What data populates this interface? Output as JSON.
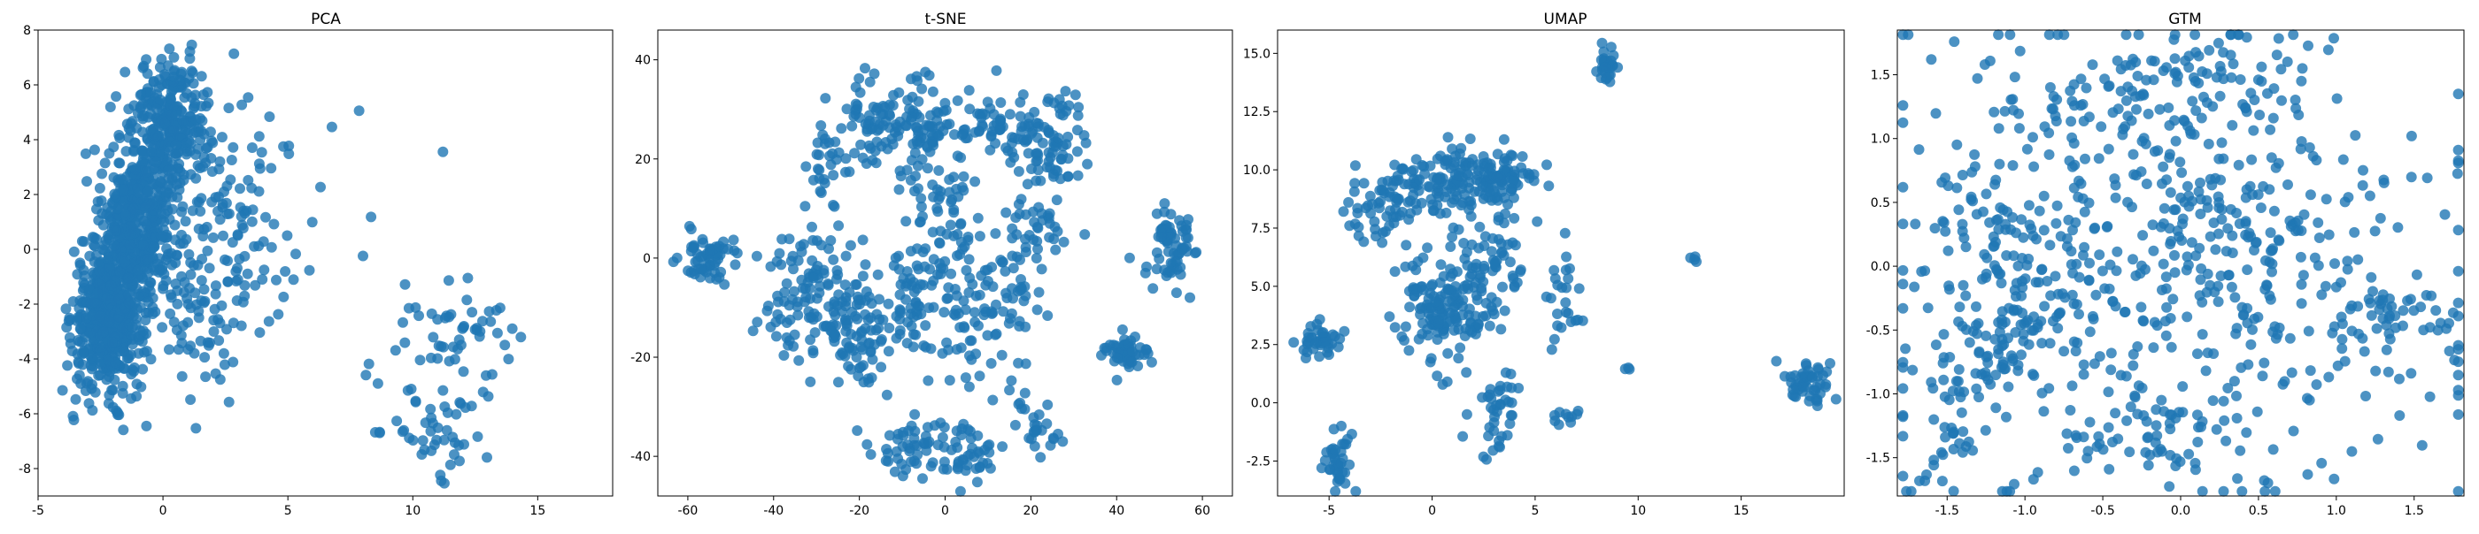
{
  "figure": {
    "panel_count": 4
  },
  "chart_data": [
    {
      "type": "scatter",
      "title": "PCA",
      "xlabel": "",
      "ylabel": "",
      "xlim": [
        -5,
        18
      ],
      "ylim": [
        -9,
        8
      ],
      "xticks": [
        -5,
        0,
        5,
        10,
        15
      ],
      "yticks": [
        -8,
        -6,
        -4,
        -2,
        0,
        2,
        4,
        6,
        8
      ],
      "marker_color": "#1f77b4",
      "marker_alpha": 0.8,
      "clusters": [
        {
          "cx": -2.2,
          "cy": -2.5,
          "sx": 0.7,
          "sy": 1.3,
          "n": 520
        },
        {
          "cx": -1.0,
          "cy": 1.0,
          "sx": 0.7,
          "sy": 1.6,
          "n": 420
        },
        {
          "cx": 0.3,
          "cy": 4.6,
          "sx": 0.8,
          "sy": 1.1,
          "n": 280
        },
        {
          "cx": 2.2,
          "cy": 1.5,
          "sx": 1.6,
          "sy": 2.2,
          "n": 130
        },
        {
          "cx": 1.5,
          "cy": -2.5,
          "sx": 1.5,
          "sy": 1.5,
          "n": 70
        },
        {
          "cx": 12.0,
          "cy": -3.0,
          "sx": 1.2,
          "sy": 1.0,
          "n": 50
        },
        {
          "cx": 11.0,
          "cy": -6.5,
          "sx": 1.5,
          "sy": 1.0,
          "n": 50
        },
        {
          "cx": 6.5,
          "cy": 0.0,
          "sx": 1.5,
          "sy": 2.5,
          "n": 15
        }
      ]
    },
    {
      "type": "scatter",
      "title": "t-SNE",
      "xlabel": "",
      "ylabel": "",
      "xlim": [
        -67,
        67
      ],
      "ylim": [
        -48,
        46
      ],
      "xticks": [
        -60,
        -40,
        -20,
        0,
        20,
        40,
        60
      ],
      "yticks": [
        -40,
        -20,
        0,
        20,
        40
      ],
      "marker_color": "#1f77b4",
      "marker_alpha": 0.8,
      "clusters": [
        {
          "cx": -55,
          "cy": 0,
          "sx": 3.5,
          "sy": 3.0,
          "n": 60
        },
        {
          "cx": -30,
          "cy": -8,
          "sx": 6,
          "sy": 7,
          "n": 120
        },
        {
          "cx": -15,
          "cy": 27,
          "sx": 5,
          "sy": 5,
          "n": 80
        },
        {
          "cx": -4,
          "cy": 27,
          "sx": 4,
          "sy": 5,
          "n": 60
        },
        {
          "cx": 12,
          "cy": 25,
          "sx": 5,
          "sy": 4,
          "n": 60
        },
        {
          "cx": 25,
          "cy": 23,
          "sx": 4,
          "sy": 5,
          "n": 70
        },
        {
          "cx": -20,
          "cy": -15,
          "sx": 4,
          "sy": 5,
          "n": 70
        },
        {
          "cx": -7,
          "cy": -10,
          "sx": 4,
          "sy": 6,
          "n": 70
        },
        {
          "cx": 10,
          "cy": -10,
          "sx": 6,
          "sy": 7,
          "n": 90
        },
        {
          "cx": 0,
          "cy": 8,
          "sx": 5,
          "sy": 6,
          "n": 60
        },
        {
          "cx": 20,
          "cy": 5,
          "sx": 5,
          "sy": 4,
          "n": 40
        },
        {
          "cx": -8,
          "cy": -38,
          "sx": 5,
          "sy": 3,
          "n": 50
        },
        {
          "cx": 5,
          "cy": -40,
          "sx": 4,
          "sy": 3,
          "n": 40
        },
        {
          "cx": 20,
          "cy": -35,
          "sx": 3,
          "sy": 3,
          "n": 25
        },
        {
          "cx": 42,
          "cy": -19,
          "sx": 2.5,
          "sy": 2.0,
          "n": 50
        },
        {
          "cx": 53,
          "cy": 1,
          "sx": 3,
          "sy": 4,
          "n": 70
        },
        {
          "cx": -28,
          "cy": 20,
          "sx": 3,
          "sy": 5,
          "n": 25
        }
      ]
    },
    {
      "type": "scatter",
      "title": "UMAP",
      "xlabel": "",
      "ylabel": "",
      "xlim": [
        -7.5,
        20
      ],
      "ylim": [
        -4,
        16
      ],
      "xticks": [
        -5,
        0,
        5,
        10,
        15
      ],
      "yticks": [
        -2.5,
        0.0,
        2.5,
        5.0,
        7.5,
        10.0,
        12.5,
        15.0
      ],
      "marker_color": "#1f77b4",
      "marker_alpha": 0.8,
      "clusters": [
        {
          "cx": 0.5,
          "cy": 9.5,
          "sx": 1.2,
          "sy": 0.7,
          "n": 110
        },
        {
          "cx": 3.3,
          "cy": 9.5,
          "sx": 0.8,
          "sy": 0.6,
          "n": 80
        },
        {
          "cx": -2.5,
          "cy": 8.5,
          "sx": 1.2,
          "sy": 0.8,
          "n": 60
        },
        {
          "cx": 0.5,
          "cy": 4.0,
          "sx": 1.1,
          "sy": 1.4,
          "n": 150
        },
        {
          "cx": 3.0,
          "cy": 6.0,
          "sx": 0.8,
          "sy": 1.2,
          "n": 60
        },
        {
          "cx": -5.5,
          "cy": 2.8,
          "sx": 0.6,
          "sy": 0.4,
          "n": 40
        },
        {
          "cx": -4.5,
          "cy": -2.5,
          "sx": 0.4,
          "sy": 0.7,
          "n": 40
        },
        {
          "cx": 3.0,
          "cy": -0.2,
          "sx": 0.6,
          "sy": 0.9,
          "n": 40
        },
        {
          "cx": 8.5,
          "cy": 14.6,
          "sx": 0.25,
          "sy": 0.4,
          "n": 30
        },
        {
          "cx": 18.2,
          "cy": 0.8,
          "sx": 0.6,
          "sy": 0.5,
          "n": 50
        },
        {
          "cx": 6.5,
          "cy": 4.0,
          "sx": 0.6,
          "sy": 1.2,
          "n": 25
        },
        {
          "cx": 6.5,
          "cy": -0.5,
          "sx": 0.5,
          "sy": 0.3,
          "n": 10
        },
        {
          "cx": 12.8,
          "cy": 6.2,
          "sx": 0.1,
          "sy": 0.1,
          "n": 4
        },
        {
          "cx": 9.5,
          "cy": 1.4,
          "sx": 0.1,
          "sy": 0.1,
          "n": 3
        }
      ]
    },
    {
      "type": "scatter",
      "title": "GTM",
      "xlabel": "",
      "ylabel": "",
      "xlim": [
        -1.82,
        1.82
      ],
      "ylim": [
        -1.8,
        1.85
      ],
      "xticks": [
        -1.5,
        -1.0,
        -0.5,
        0.0,
        0.5,
        1.0,
        1.5
      ],
      "yticks": [
        -1.5,
        -1.0,
        -0.5,
        0.0,
        0.5,
        1.0,
        1.5
      ],
      "marker_color": "#1f77b4",
      "marker_alpha": 0.8,
      "clusters": [
        {
          "cx": 0.0,
          "cy": 0.0,
          "sx": 0.95,
          "sy": 0.95,
          "n": 520
        },
        {
          "cx": -1.0,
          "cy": -0.2,
          "sx": 0.25,
          "sy": 0.25,
          "n": 60
        },
        {
          "cx": -1.3,
          "cy": -0.7,
          "sx": 0.2,
          "sy": 0.2,
          "n": 50
        },
        {
          "cx": 0.3,
          "cy": 1.4,
          "sx": 0.4,
          "sy": 0.2,
          "n": 60
        },
        {
          "cx": -0.5,
          "cy": 1.2,
          "sx": 0.3,
          "sy": 0.2,
          "n": 40
        },
        {
          "cx": 1.3,
          "cy": -0.4,
          "sx": 0.2,
          "sy": 0.2,
          "n": 40
        },
        {
          "cx": -1.5,
          "cy": -1.4,
          "sx": 0.2,
          "sy": 0.2,
          "n": 30
        },
        {
          "cx": -0.1,
          "cy": -1.3,
          "sx": 0.3,
          "sy": 0.2,
          "n": 40
        },
        {
          "cx": -1.3,
          "cy": 0.4,
          "sx": 0.2,
          "sy": 0.2,
          "n": 30
        },
        {
          "cx": 0.0,
          "cy": 0.5,
          "sx": 0.3,
          "sy": 0.3,
          "n": 40
        }
      ]
    }
  ]
}
